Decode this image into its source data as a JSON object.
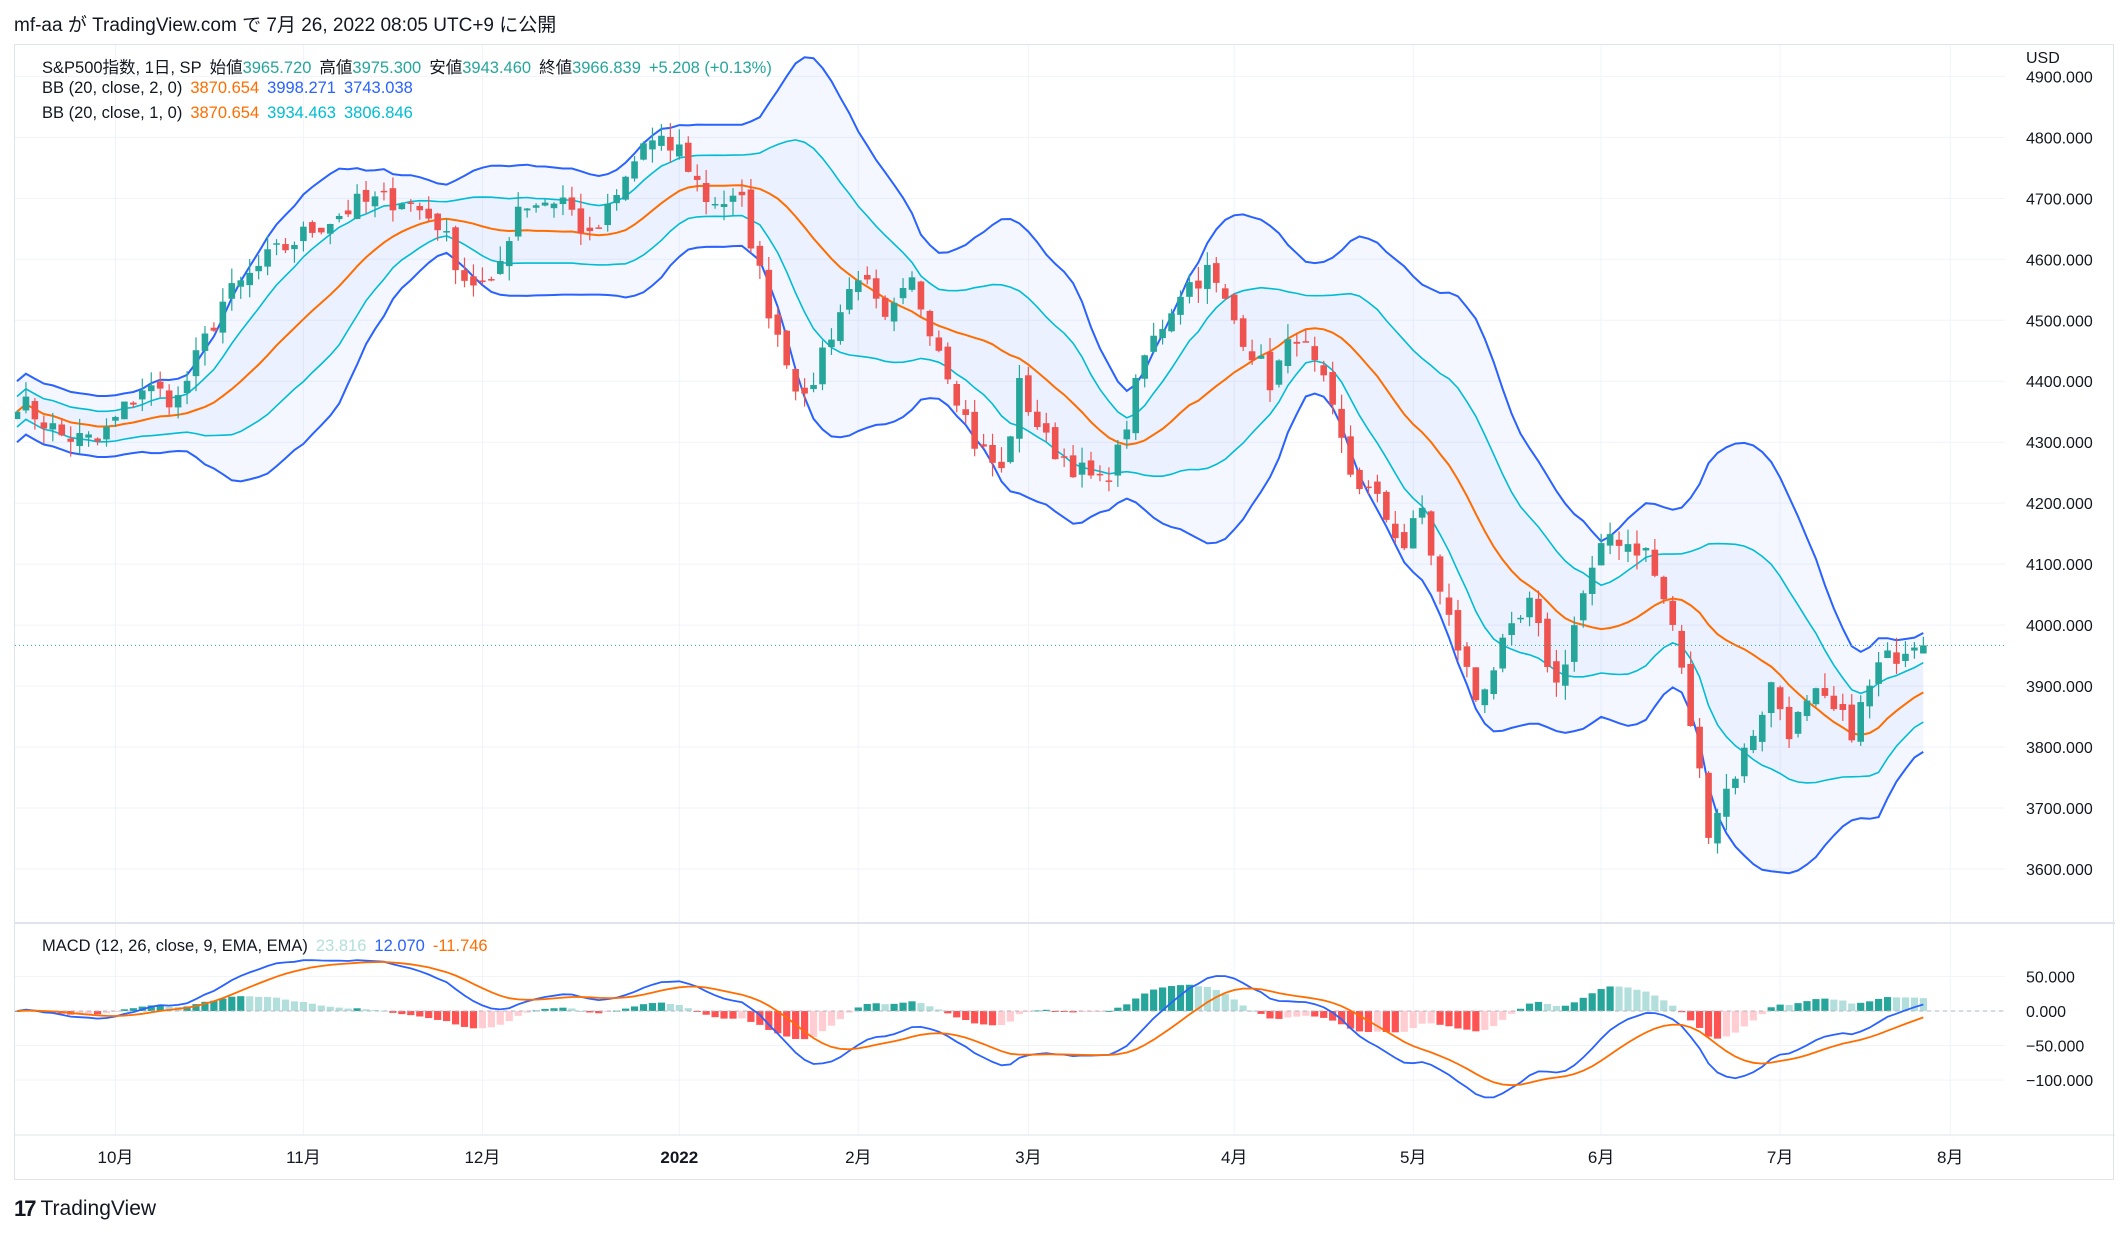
{
  "header": {
    "text": "mf-aa が TradingView.com で 7月 26, 2022 08:05 UTC+9 に公開"
  },
  "footer": {
    "logo_glyph": "17",
    "brand": "TradingView"
  },
  "legend": {
    "symbol": "S&P500指数, 1日, SP",
    "open_label": "始値",
    "open": "3965.720",
    "high_label": "高値",
    "high": "3975.300",
    "low_label": "安値",
    "low": "3943.460",
    "close_label": "終値",
    "close": "3966.839",
    "change": "+5.208 (+0.13%)",
    "bb2_label": "BB (20, close, 2, 0)",
    "bb2_basis": "3870.654",
    "bb2_upper": "3998.271",
    "bb2_lower": "3743.038",
    "bb1_label": "BB (20, close, 1, 0)",
    "bb1_basis": "3870.654",
    "bb1_upper": "3934.463",
    "bb1_lower": "3806.846",
    "macd_label": "MACD (12, 26, close, 9, EMA, EMA)",
    "macd_hist": "23.816",
    "macd_line": "12.070",
    "macd_signal": "-11.746"
  },
  "colors": {
    "up": "#26a69a",
    "down": "#ef5350",
    "basis": "#ff6d00",
    "bb2": "#2962ff",
    "bb1": "#00bcd4",
    "macd": "#2962ff",
    "signal": "#ff6d00"
  },
  "chart_data": {
    "type": "candlestick",
    "currency": "USD",
    "y_ticks": [
      "3600.000",
      "3700.000",
      "3800.000",
      "3900.000",
      "4000.000",
      "4100.000",
      "4200.000",
      "4300.000",
      "4400.000",
      "4500.000",
      "4600.000",
      "4700.000",
      "4800.000",
      "4900.000"
    ],
    "macd_ticks": [
      "50.000",
      "0.000",
      "−50.000",
      "−100.000"
    ],
    "months": [
      {
        "label": "10月",
        "i": 11
      },
      {
        "label": "11月",
        "i": 32
      },
      {
        "label": "12月",
        "i": 52
      },
      {
        "label": "2022",
        "i": 74
      },
      {
        "label": "2月",
        "i": 94
      },
      {
        "label": "3月",
        "i": 113
      },
      {
        "label": "4月",
        "i": 136
      },
      {
        "label": "5月",
        "i": 156
      },
      {
        "label": "6月",
        "i": 177
      },
      {
        "label": "7月",
        "i": 197
      },
      {
        "label": "8月",
        "i": 216
      }
    ],
    "last_close": 3966.839,
    "keypoints": [
      [
        0,
        4370
      ],
      [
        5,
        4310
      ],
      [
        9,
        4300
      ],
      [
        14,
        4390
      ],
      [
        18,
        4370
      ],
      [
        23,
        4530
      ],
      [
        28,
        4600
      ],
      [
        33,
        4650
      ],
      [
        38,
        4690
      ],
      [
        43,
        4700
      ],
      [
        47,
        4660
      ],
      [
        50,
        4570
      ],
      [
        53,
        4550
      ],
      [
        56,
        4690
      ],
      [
        61,
        4700
      ],
      [
        64,
        4630
      ],
      [
        67,
        4700
      ],
      [
        70,
        4790
      ],
      [
        74,
        4780
      ],
      [
        77,
        4700
      ],
      [
        81,
        4690
      ],
      [
        84,
        4520
      ],
      [
        88,
        4360
      ],
      [
        90,
        4450
      ],
      [
        94,
        4580
      ],
      [
        97,
        4490
      ],
      [
        100,
        4560
      ],
      [
        103,
        4460
      ],
      [
        107,
        4300
      ],
      [
        110,
        4250
      ],
      [
        112,
        4390
      ],
      [
        115,
        4300
      ],
      [
        119,
        4250
      ],
      [
        121,
        4230
      ],
      [
        123,
        4280
      ],
      [
        126,
        4440
      ],
      [
        130,
        4550
      ],
      [
        133,
        4580
      ],
      [
        136,
        4500
      ],
      [
        140,
        4400
      ],
      [
        143,
        4480
      ],
      [
        146,
        4390
      ],
      [
        149,
        4250
      ],
      [
        152,
        4200
      ],
      [
        155,
        4130
      ],
      [
        157,
        4190
      ],
      [
        159,
        4050
      ],
      [
        163,
        3880
      ],
      [
        166,
        3960
      ],
      [
        169,
        4030
      ],
      [
        172,
        3900
      ],
      [
        175,
        4050
      ],
      [
        178,
        4150
      ],
      [
        182,
        4120
      ],
      [
        185,
        4000
      ],
      [
        187,
        3840
      ],
      [
        189,
        3670
      ],
      [
        193,
        3790
      ],
      [
        196,
        3900
      ],
      [
        198,
        3830
      ],
      [
        201,
        3880
      ],
      [
        205,
        3830
      ],
      [
        208,
        3930
      ],
      [
        212,
        3980
      ],
      [
        213,
        3966.8
      ]
    ],
    "seed": 7
  }
}
